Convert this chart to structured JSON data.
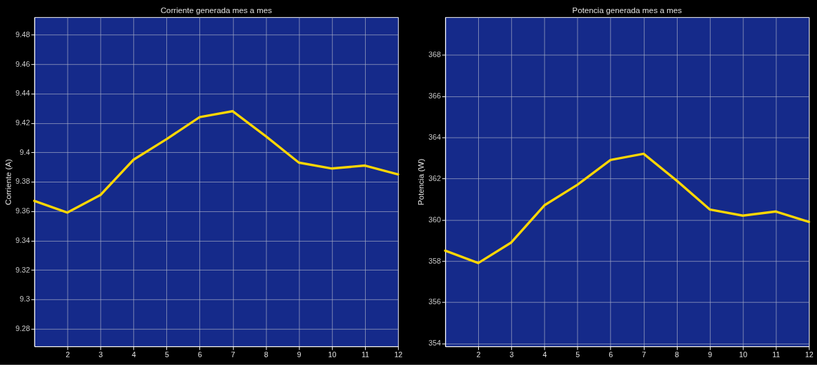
{
  "chart_data": [
    {
      "type": "line",
      "title": "Corriente generada mes a mes",
      "ylabel": "Corriente (A)",
      "x": [
        1,
        2,
        3,
        4,
        5,
        6,
        7,
        8,
        9,
        10,
        11,
        12
      ],
      "series": [
        {
          "color": "#ffd700",
          "values": [
            9.367,
            9.359,
            9.371,
            9.395,
            9.409,
            9.424,
            9.428,
            9.411,
            9.393,
            9.389,
            9.391,
            9.385
          ]
        }
      ],
      "xlim": [
        1,
        12
      ],
      "xticks": [
        2,
        3,
        4,
        5,
        6,
        7,
        8,
        9,
        10,
        11,
        12
      ],
      "ylim": [
        9.268,
        9.492
      ],
      "yticks": [
        9.28,
        9.3,
        9.32,
        9.34,
        9.36,
        9.38,
        9.4,
        9.42,
        9.44,
        9.46,
        9.48
      ],
      "grid": true,
      "legend": false,
      "marker": "none",
      "line_style": "solid"
    },
    {
      "type": "line",
      "title": "Potencia generada mes a mes",
      "ylabel": "Potencia (W)",
      "x": [
        1,
        2,
        3,
        4,
        5,
        6,
        7,
        8,
        9,
        10,
        11,
        12
      ],
      "series": [
        {
          "color": "#ffd700",
          "values": [
            358.5,
            357.9,
            358.9,
            360.7,
            361.7,
            362.9,
            363.2,
            361.9,
            360.5,
            360.2,
            360.4,
            359.9
          ]
        }
      ],
      "xlim": [
        1,
        12
      ],
      "xticks": [
        2,
        3,
        4,
        5,
        6,
        7,
        8,
        9,
        10,
        11,
        12
      ],
      "ylim": [
        353.86,
        369.83
      ],
      "yticks": [
        354,
        356,
        358,
        360,
        362,
        364,
        366,
        368
      ],
      "grid": true,
      "legend": false,
      "marker": "none",
      "line_style": "solid"
    }
  ]
}
